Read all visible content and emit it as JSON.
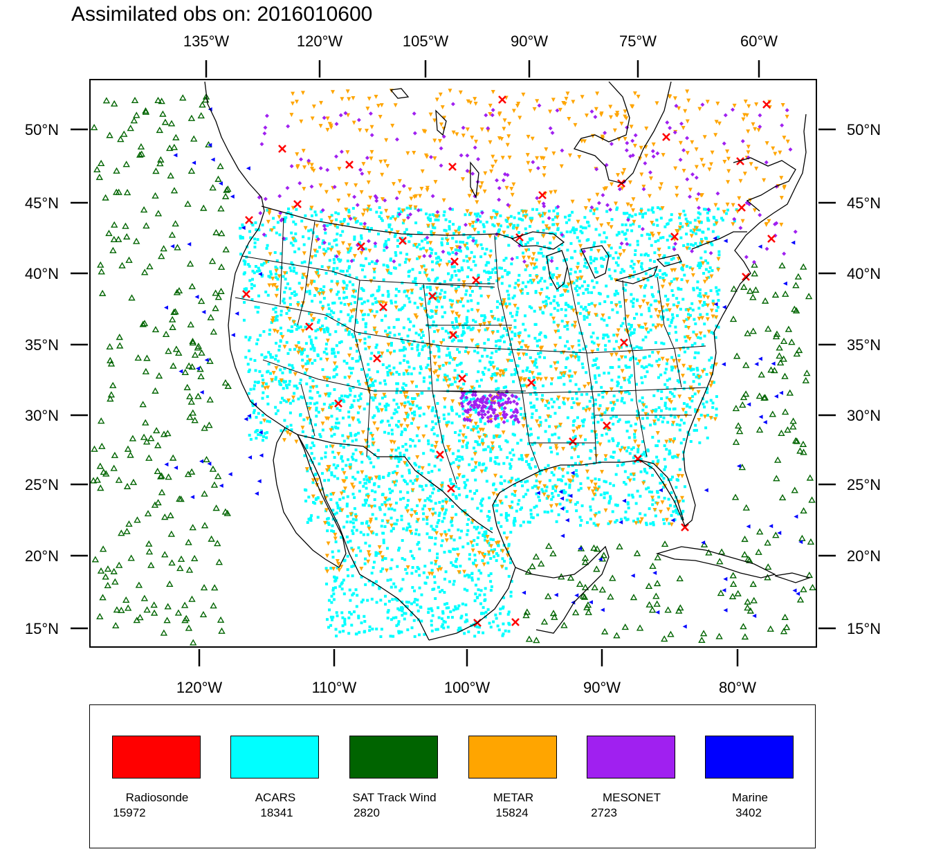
{
  "title": "Assimilated obs on: 2016010600",
  "map": {
    "top_ticks": [
      "135°W",
      "120°W",
      "105°W",
      "90°W",
      "75°W",
      "60°W"
    ],
    "bottom_ticks": [
      "120°W",
      "110°W",
      "100°W",
      "90°W",
      "80°W"
    ],
    "left_ticks": [
      "50°N",
      "45°N",
      "40°N",
      "35°N",
      "30°N",
      "25°N",
      "20°N",
      "15°N"
    ],
    "right_ticks": [
      "50°N",
      "45°N",
      "40°N",
      "35°N",
      "30°N",
      "25°N",
      "20°N",
      "15°N"
    ],
    "lat_range": [
      14,
      54
    ],
    "lon_range_bottom": [
      -128,
      -75
    ]
  },
  "legend": [
    {
      "name": "Radiosonde",
      "count": "15972",
      "color": "#ff0000",
      "marker": "x-icon"
    },
    {
      "name": "ACARS",
      "count": "18341",
      "color": "#00ffff",
      "marker": "square-icon"
    },
    {
      "name": "SAT Track Wind",
      "count": "2820",
      "color": "#006400",
      "marker": "triangle-up-icon"
    },
    {
      "name": "METAR",
      "count": "15824",
      "color": "#ffa500",
      "marker": "triangle-down-icon"
    },
    {
      "name": "MESONET",
      "count": "2723",
      "color": "#a020f0",
      "marker": "diamond-icon"
    },
    {
      "name": "Marine",
      "count": "3402",
      "color": "#0000ff",
      "marker": "triangle-left-icon"
    }
  ]
}
